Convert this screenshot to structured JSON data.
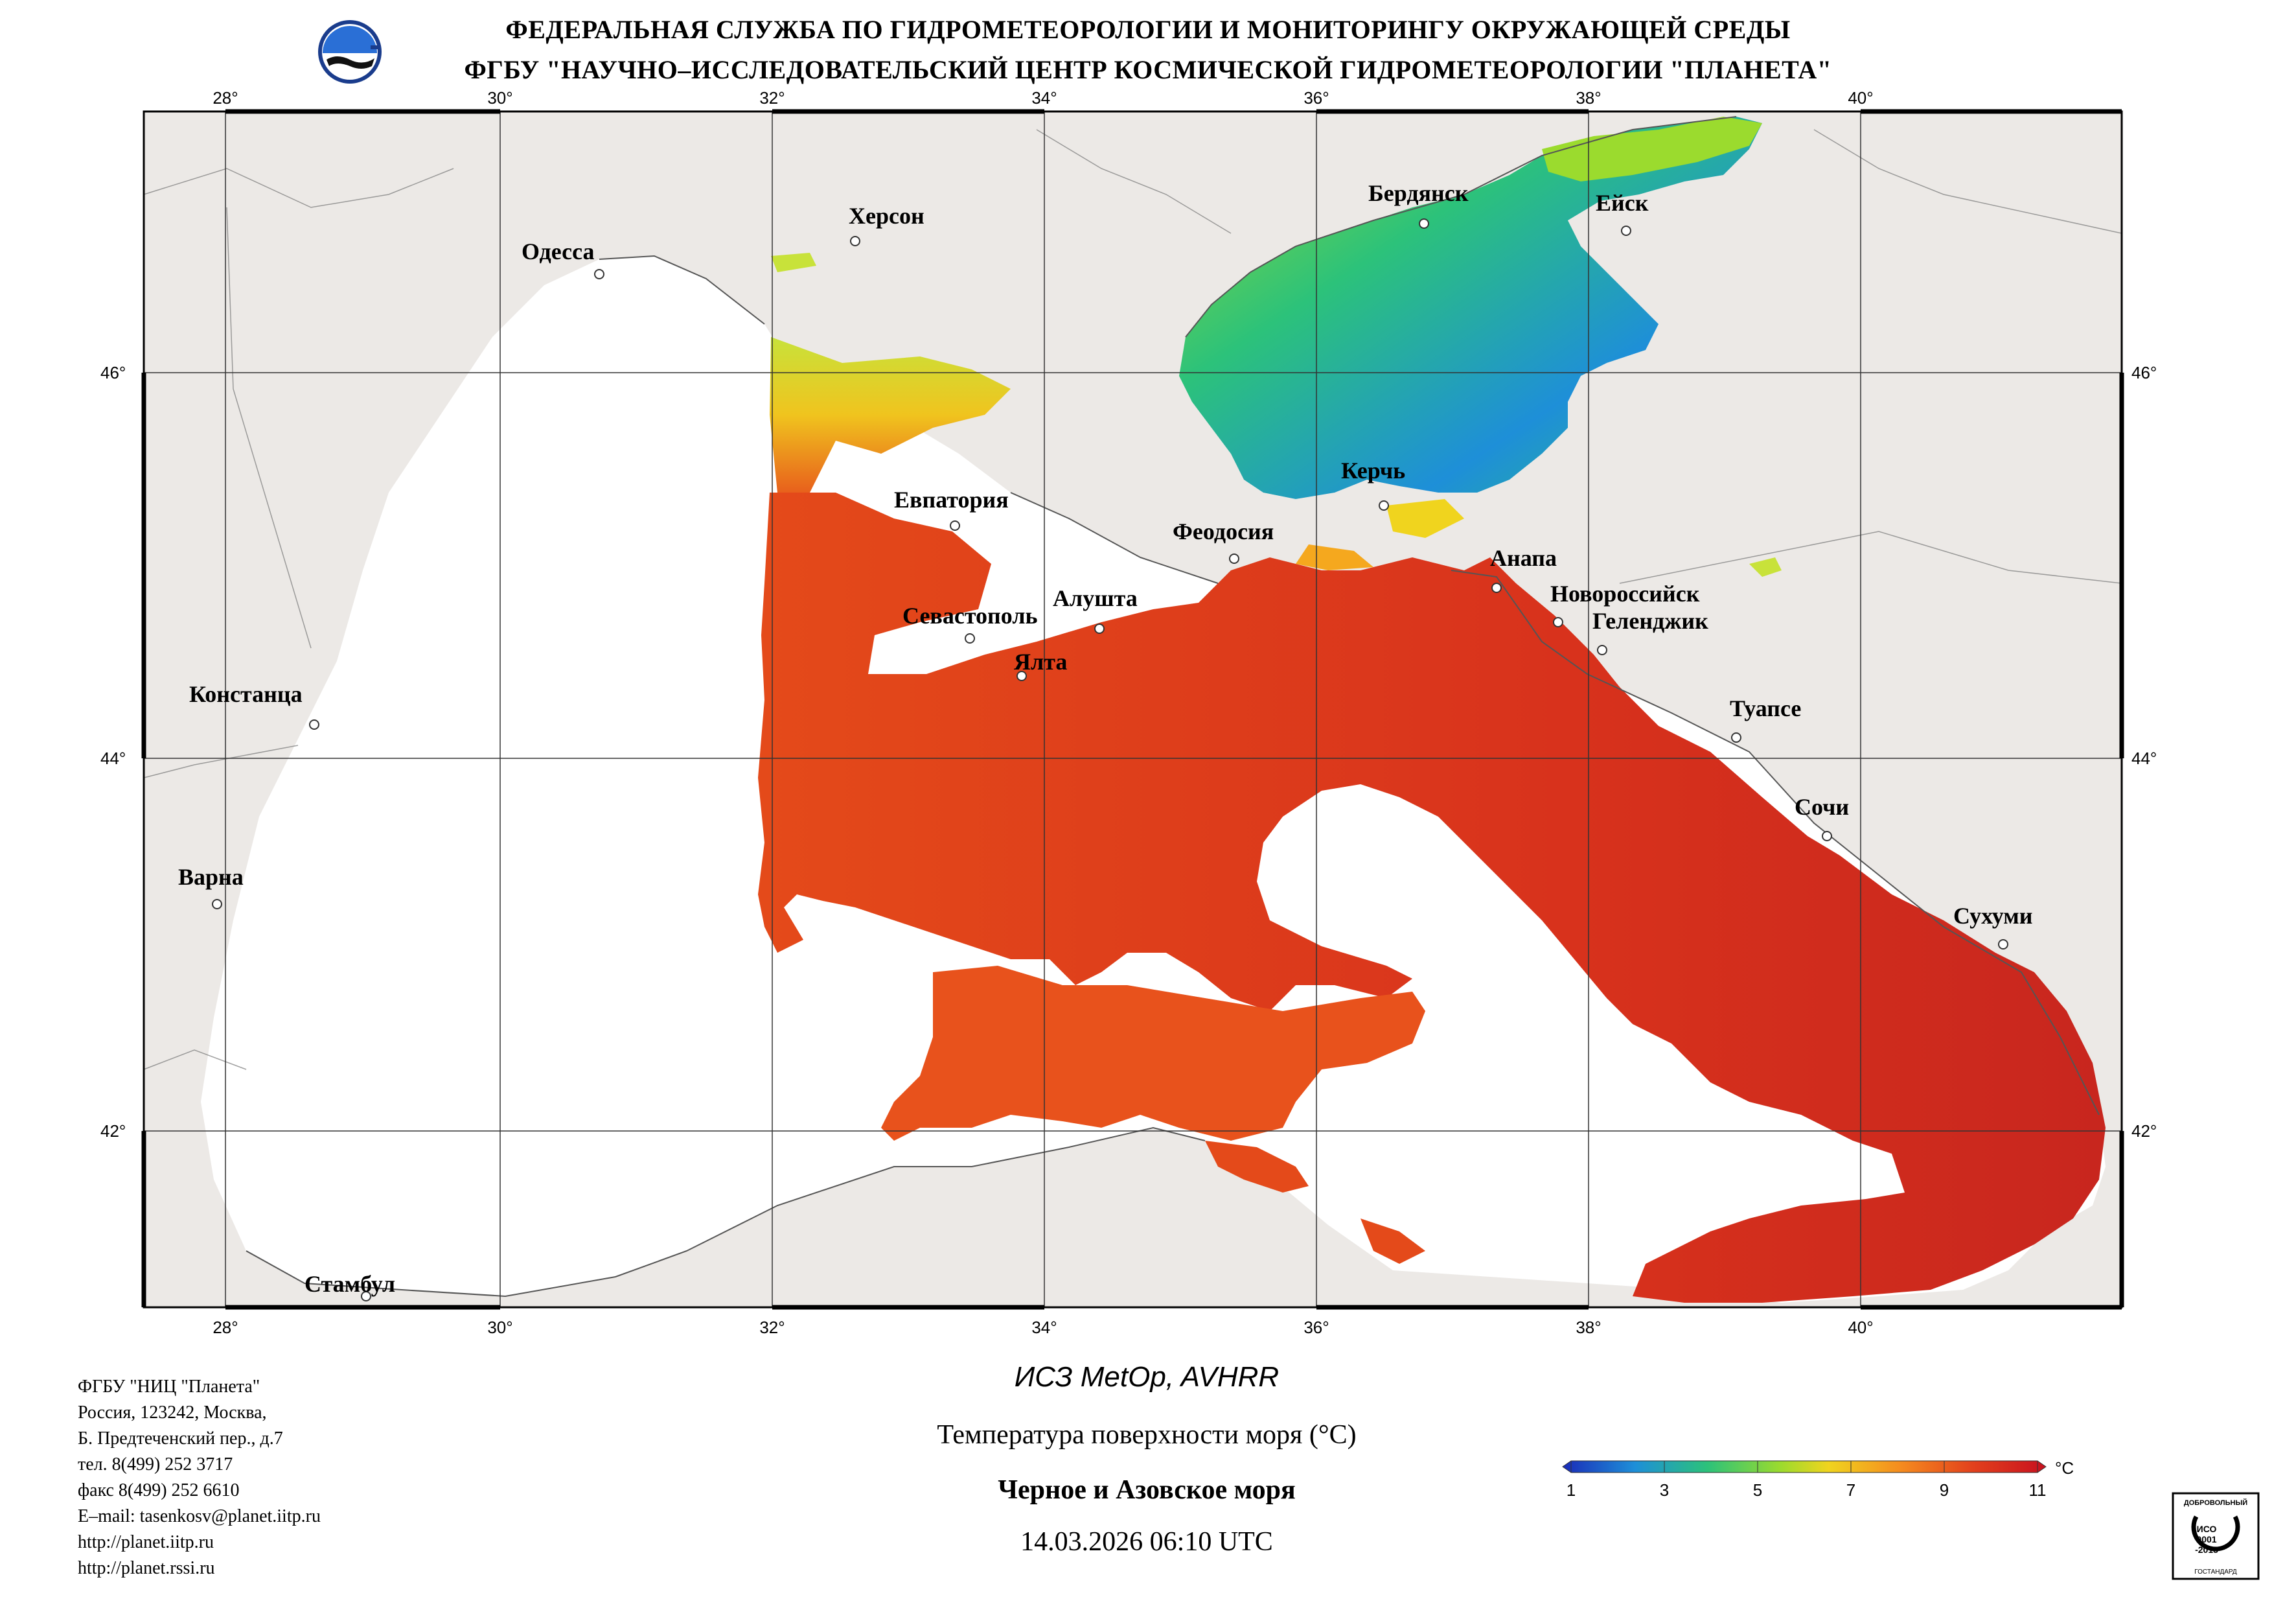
{
  "header": {
    "line1": "ФЕДЕРАЛЬНАЯ СЛУЖБА ПО ГИДРОМЕТЕОРОЛОГИИ И МОНИТОРИНГУ ОКРУЖАЮЩЕЙ СРЕДЫ",
    "line2": "ФГБУ \"НАУЧНО–ИССЛЕДОВАТЕЛЬСКИЙ ЦЕНТР КОСМИЧЕСКОЙ ГИДРОМЕТЕОРОЛОГИИ \"ПЛАНЕТА\""
  },
  "logo": {
    "icon": "planeta-globe-logo-icon"
  },
  "map": {
    "lon_ticks": [
      "28°",
      "30°",
      "32°",
      "34°",
      "36°",
      "38°",
      "40°"
    ],
    "lat_ticks": [
      "46°",
      "44°",
      "42°"
    ],
    "cities": [
      {
        "name": "Херсон"
      },
      {
        "name": "Одесса"
      },
      {
        "name": "Бердянск"
      },
      {
        "name": "Ейск"
      },
      {
        "name": "Евпатория"
      },
      {
        "name": "Керчь"
      },
      {
        "name": "Феодосия"
      },
      {
        "name": "Анапа"
      },
      {
        "name": "Новороссийск"
      },
      {
        "name": "Геленджик"
      },
      {
        "name": "Севастополь"
      },
      {
        "name": "Алушта"
      },
      {
        "name": "Ялта"
      },
      {
        "name": "Констанца"
      },
      {
        "name": "Туапсе"
      },
      {
        "name": "Сочи"
      },
      {
        "name": "Варна"
      },
      {
        "name": "Сухуми"
      },
      {
        "name": "Стамбул"
      }
    ],
    "colors": {
      "land": "#ECE9E6",
      "cloud_nodata": "#FFFFFF",
      "warm_sea": "#E2401C",
      "azov_cold": "#22B58A"
    }
  },
  "address": {
    "lines": [
      "ФГБУ \"НИЦ \"Планета\"",
      "Россия, 123242, Москва,",
      "Б. Предтеченский пер., д.7",
      "тел. 8(499) 252 3717",
      "факс 8(499) 252 6610",
      "E–mail: tasenkosv@planet.iitp.ru",
      "http://planet.iitp.ru",
      "http://planet.rssi.ru"
    ]
  },
  "product": {
    "satellite": "ИСЗ MetOp, AVHRR",
    "title": "Температура поверхности моря (°С)",
    "region": "Черное и Азовское моря",
    "datetime": "14.03.2026 06:10 UTC"
  },
  "colorbar": {
    "ticks": [
      "1",
      "3",
      "5",
      "7",
      "9",
      "11"
    ],
    "unit": "°С",
    "min": 1,
    "max": 11,
    "colors": [
      "#1A2BB8",
      "#1E8FD8",
      "#2CC27A",
      "#9BDB2E",
      "#F0D41E",
      "#F58B1E",
      "#E2401C",
      "#C8101E"
    ]
  },
  "certificate": {
    "top": "ДОБРОВОЛЬНЫЙ",
    "mid1": "ИСО",
    "mid2": "9001",
    "mid3": "-2015",
    "bottom": "ГОСТАНДАРД",
    "icon": "iso-certificate-badge-icon"
  }
}
